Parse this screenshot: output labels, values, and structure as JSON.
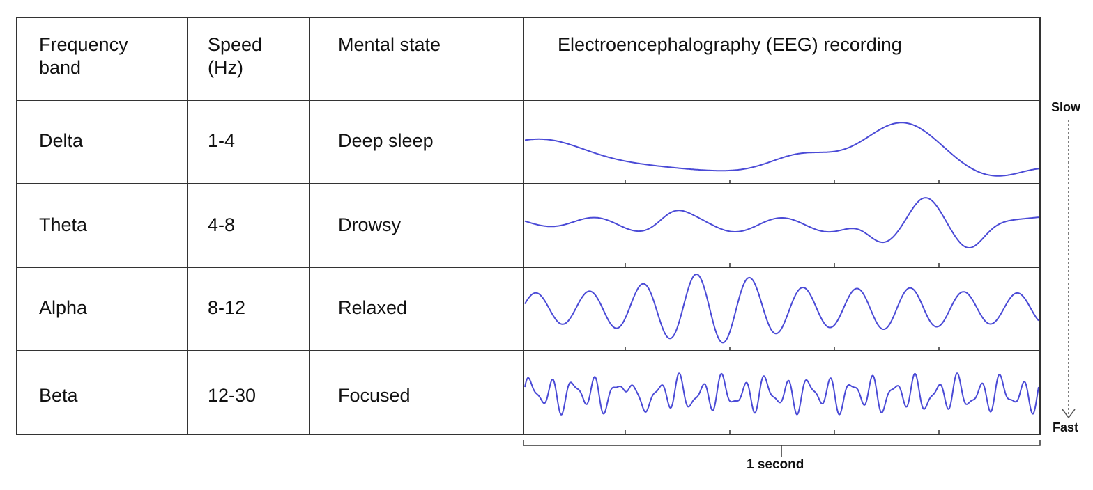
{
  "headers": {
    "frequency_band": "Frequency\nband",
    "speed": "Speed\n(Hz)",
    "mental_state": "Mental state",
    "recording": "Electroencephalography (EEG) recording"
  },
  "rows": [
    {
      "band": "Delta",
      "speed": "1-4",
      "state": "Deep sleep"
    },
    {
      "band": "Theta",
      "speed": "4-8",
      "state": "Drowsy"
    },
    {
      "band": "Alpha",
      "speed": "8-12",
      "state": "Relaxed"
    },
    {
      "band": "Beta",
      "speed": "12-30",
      "state": "Focused"
    }
  ],
  "scale": {
    "slow_label": "Slow",
    "fast_label": "Fast"
  },
  "time_label": "1 second",
  "colors": {
    "wave": "#4a4ad6",
    "grid": "#333333"
  }
}
